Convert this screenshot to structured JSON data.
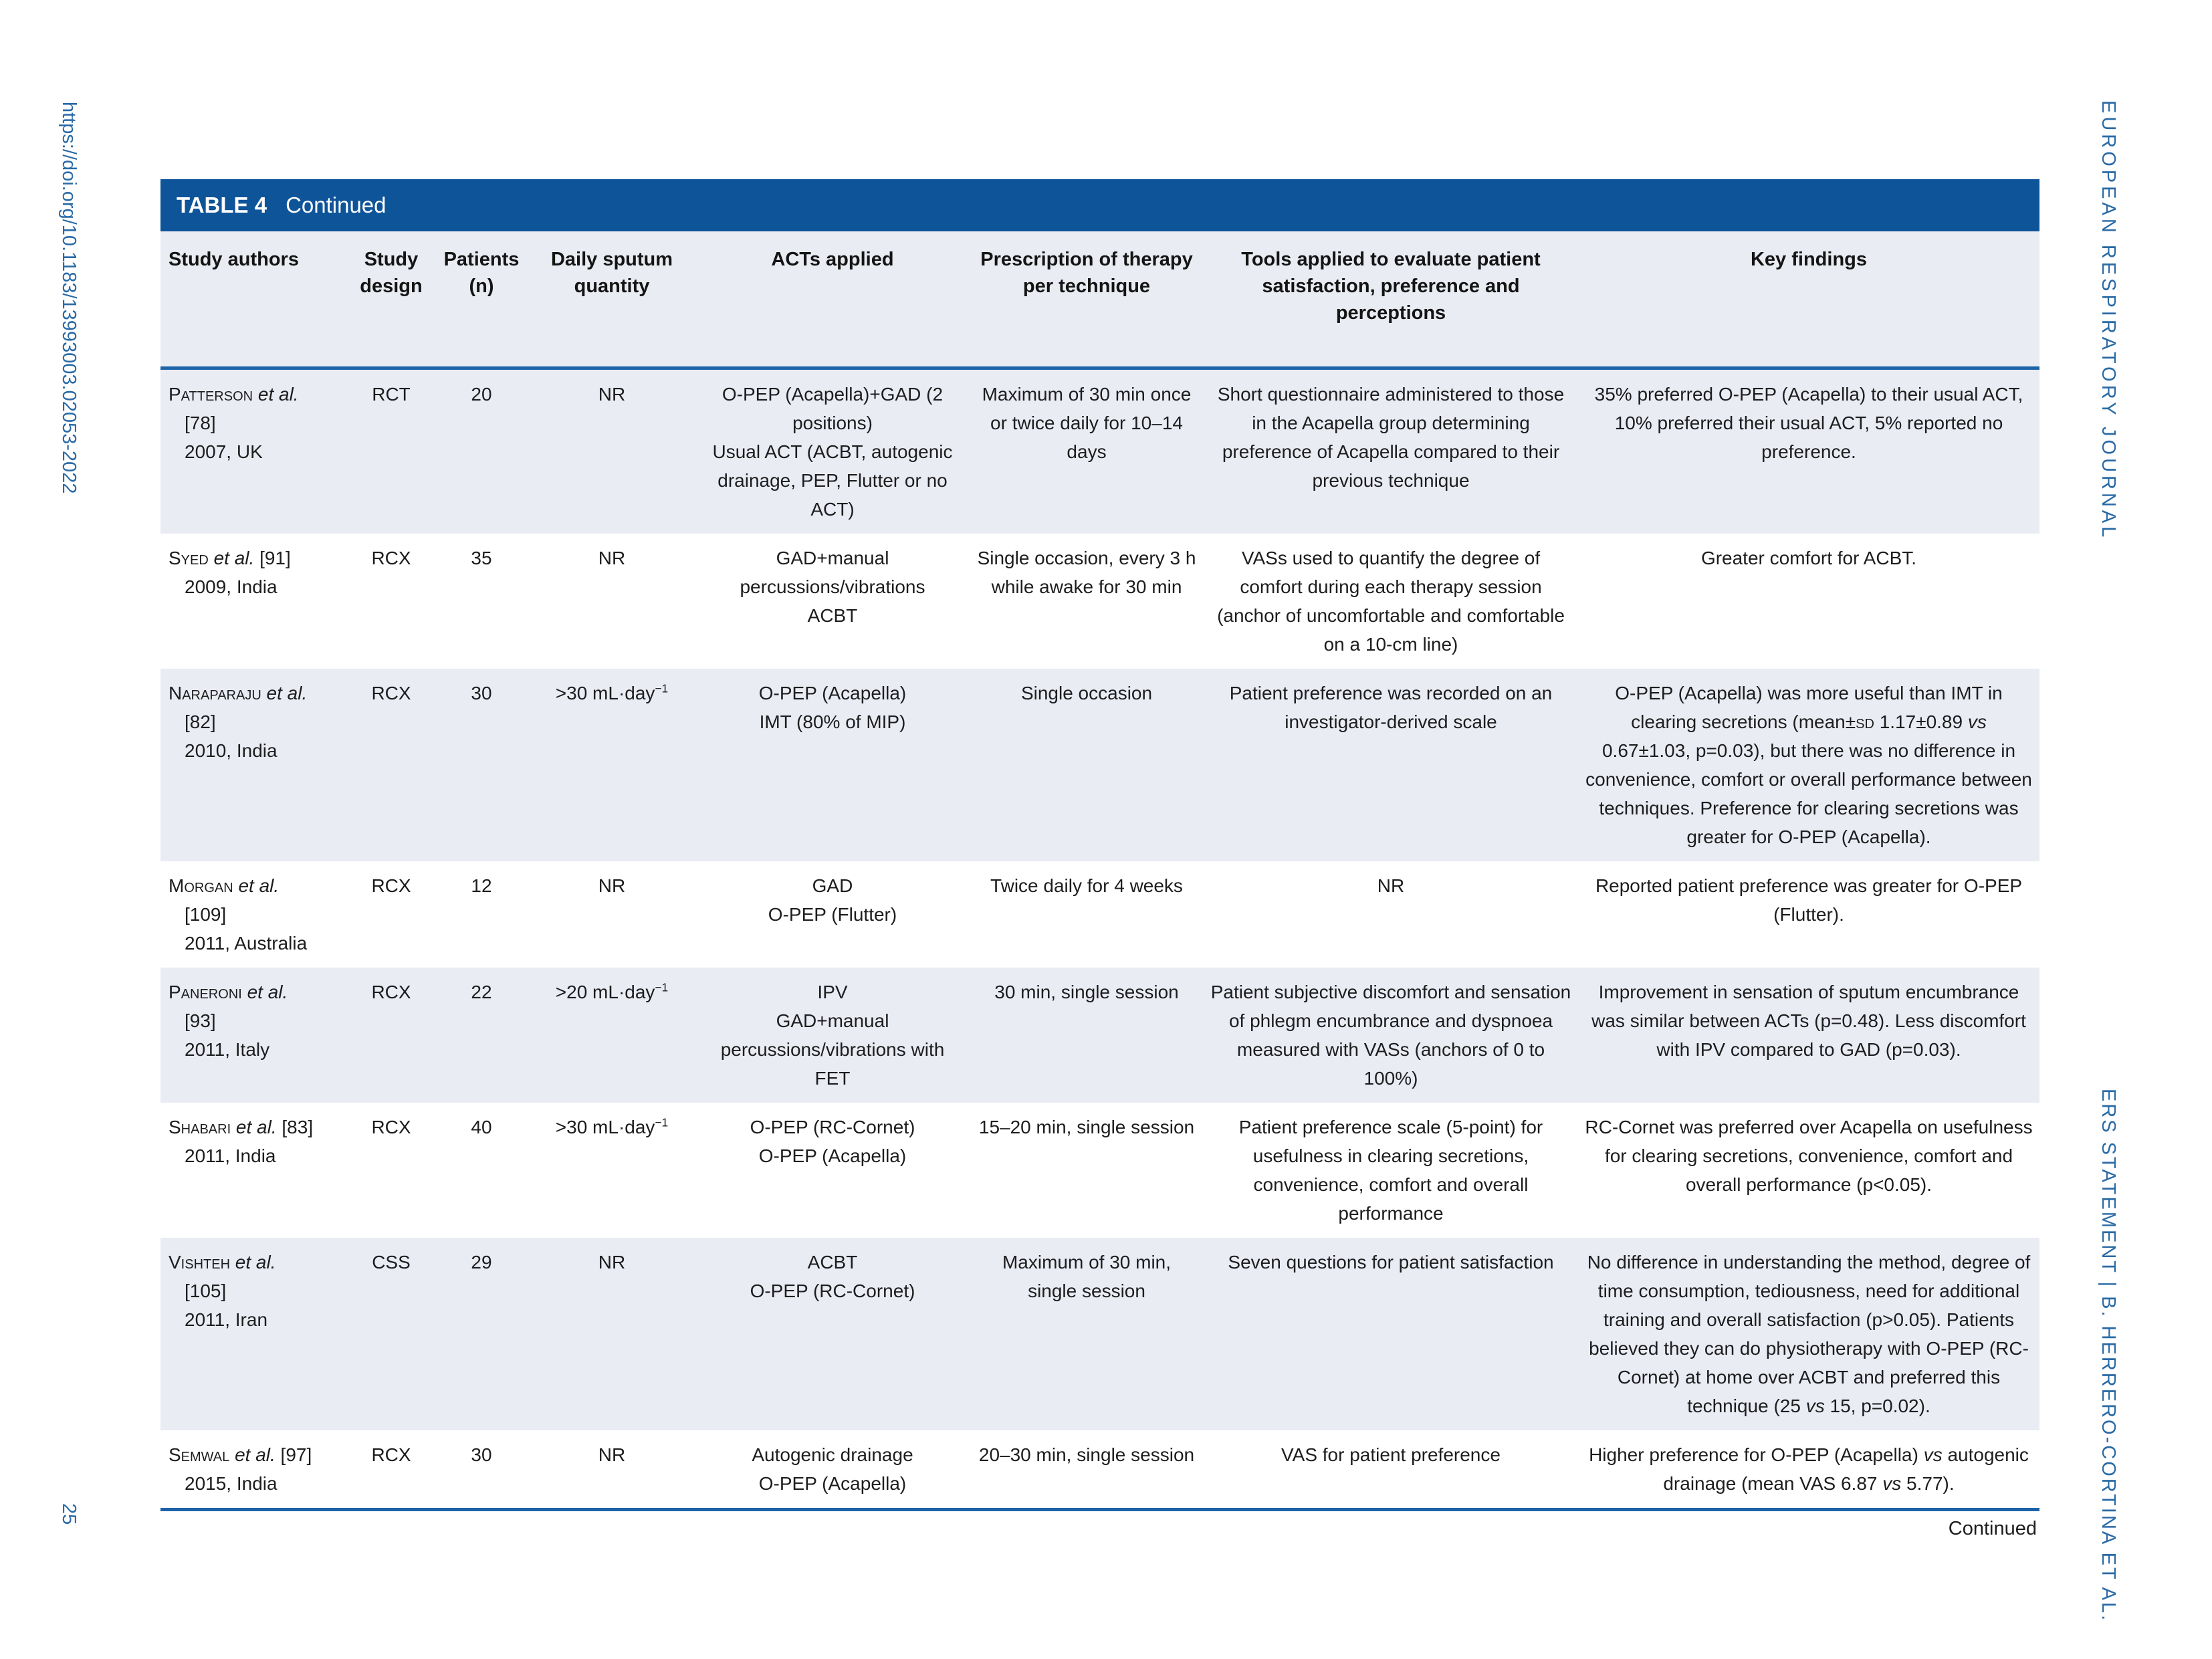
{
  "page": {
    "doi": "https://doi.org/10.1183/13993003.02053-2022",
    "page_number": "25",
    "journal_header": "EUROPEAN RESPIRATORY JOURNAL",
    "running_footer": "ERS STATEMENT  |  B. HERRERO-CORTINA ET AL.",
    "continued_note": "Continued"
  },
  "colors": {
    "header_bar_blue": "#0e5499",
    "rule_blue": "#1c63a8",
    "shaded_row": "#eaecf3",
    "side_text_blue": "#2a6aa5"
  },
  "table": {
    "title": "TABLE 4",
    "title_suffix": "Continued",
    "columns": [
      {
        "key": "authors",
        "label": "Study authors"
      },
      {
        "key": "design",
        "label": "Study design"
      },
      {
        "key": "patients",
        "label": "Patients (n)"
      },
      {
        "key": "sputum",
        "label": "Daily sputum quantity"
      },
      {
        "key": "acts",
        "label": "ACTs applied"
      },
      {
        "key": "prescription",
        "label": "Prescription of therapy per technique"
      },
      {
        "key": "tools",
        "label": "Tools applied to evaluate patient satisfaction, preference and perceptions"
      },
      {
        "key": "findings",
        "label": "Key findings"
      }
    ],
    "rows": [
      {
        "authors": "<span class=\"sc\">Patterson</span> <i>et al.</i>\n[78]\n2007, UK",
        "design": "RCT",
        "patients": "20",
        "sputum": "NR",
        "acts": "O-PEP (Acapella)+GAD (2 positions)\nUsual ACT (ACBT, autogenic drainage, PEP, Flutter or no ACT)",
        "prescription": "Maximum of 30 min once or twice daily for 10–14 days",
        "tools": "Short questionnaire administered to those in the Acapella group determining preference of Acapella compared to their previous technique",
        "findings": "35% preferred O-PEP (Acapella) to their usual ACT, 10% preferred their usual ACT, 5% reported no preference."
      },
      {
        "authors": "<span class=\"sc\">Syed</span> <i>et al.</i> [91]\n2009, India",
        "design": "RCX",
        "patients": "35",
        "sputum": "NR",
        "acts": "GAD+manual percussions/vibrations\nACBT",
        "prescription": "Single occasion, every 3 h while awake for 30 min",
        "tools": "VASs used to quantify the degree of comfort during each therapy session (anchor of uncomfortable and comfortable on a 10-cm line)",
        "findings": "Greater comfort for ACBT."
      },
      {
        "authors": "<span class=\"sc\">Naraparaju</span> <i>et al.</i>\n[82]\n2010, India",
        "design": "RCX",
        "patients": "30",
        "sputum": ">30 mL·day<sup>−1</sup>",
        "acts": "O-PEP (Acapella)\nIMT (80% of MIP)",
        "prescription": "Single occasion",
        "tools": "Patient preference was recorded on an investigator-derived scale",
        "findings": "O-PEP (Acapella) was more useful than IMT in clearing secretions (mean±<span class=\"sc\">sd</span> 1.17±0.89 <i>vs</i> 0.67±1.03, p=0.03), but there was no difference in convenience, comfort or overall performance between techniques. Preference for clearing secretions was greater for O-PEP (Acapella)."
      },
      {
        "authors": "<span class=\"sc\">Morgan</span> <i>et al.</i>\n[109]\n2011, Australia",
        "design": "RCX",
        "patients": "12",
        "sputum": "NR",
        "acts": "GAD\nO-PEP (Flutter)",
        "prescription": "Twice daily for 4 weeks",
        "tools": "NR",
        "findings": "Reported patient preference was greater for O-PEP (Flutter)."
      },
      {
        "authors": "<span class=\"sc\">Paneroni</span> <i>et al.</i>\n[93]\n2011, Italy",
        "design": "RCX",
        "patients": "22",
        "sputum": ">20 mL·day<sup>−1</sup>",
        "acts": "IPV\nGAD+manual percussions/vibrations with FET",
        "prescription": "30 min, single session",
        "tools": "Patient subjective discomfort and sensation of phlegm encumbrance and dyspnoea measured with VASs (anchors of 0 to 100%)",
        "findings": "Improvement in sensation of sputum encumbrance was similar between ACTs (p=0.48). Less discomfort with IPV compared to GAD (p=0.03)."
      },
      {
        "authors": "<span class=\"sc\">Shabari</span> <i>et al.</i> [83]\n2011, India",
        "design": "RCX",
        "patients": "40",
        "sputum": ">30 mL·day<sup>−1</sup>",
        "acts": "O-PEP (RC-Cornet)\nO-PEP (Acapella)",
        "prescription": "15–20 min, single session",
        "tools": "Patient preference scale (5-point) for usefulness in clearing secretions, convenience, comfort and overall performance",
        "findings": "RC-Cornet was preferred over Acapella on usefulness for clearing secretions, convenience, comfort and overall performance (p<0.05)."
      },
      {
        "authors": "<span class=\"sc\">Vishteh</span> <i>et al.</i>\n[105]\n2011, Iran",
        "design": "CSS",
        "patients": "29",
        "sputum": "NR",
        "acts": "ACBT\nO-PEP (RC-Cornet)",
        "prescription": "Maximum of 30 min, single session",
        "tools": "Seven questions for patient satisfaction",
        "findings": "No difference in understanding the method, degree of time consumption, tediousness, need for additional training and overall satisfaction (p>0.05). Patients believed they can do physiotherapy with O-PEP (RC-Cornet) at home over ACBT and preferred this technique (25 <i>vs</i> 15, p=0.02)."
      },
      {
        "authors": "<span class=\"sc\">Semwal</span> <i>et al.</i> [97]\n2015, India",
        "design": "RCX",
        "patients": "30",
        "sputum": "NR",
        "acts": "Autogenic drainage\nO-PEP (Acapella)",
        "prescription": "20–30 min, single session",
        "tools": "VAS for patient preference",
        "findings": "Higher preference for O-PEP (Acapella) <i>vs</i> autogenic drainage (mean VAS 6.87 <i>vs</i> 5.77)."
      }
    ]
  }
}
